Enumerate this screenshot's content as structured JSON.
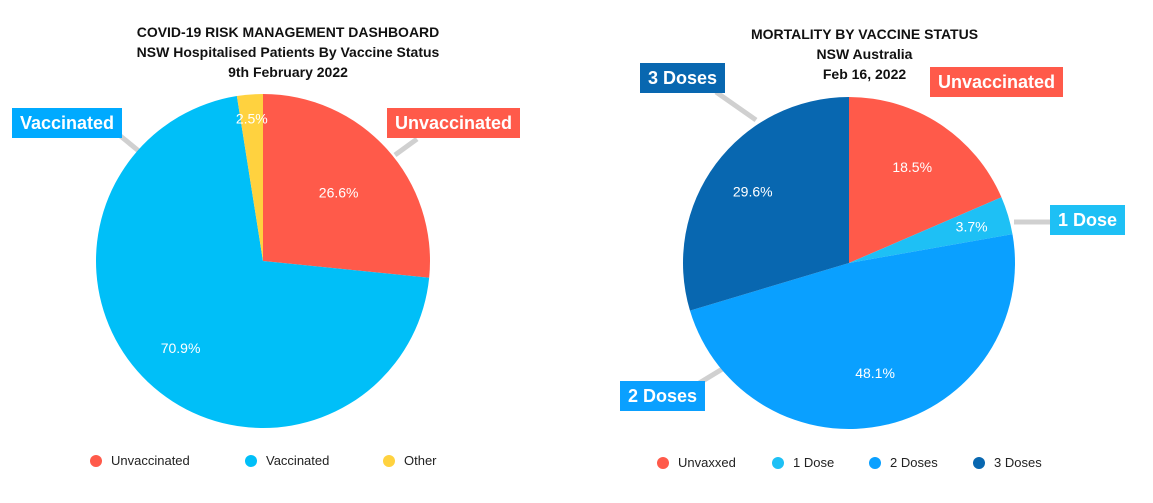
{
  "charts": [
    {
      "title_lines": [
        "COVID-19 RISK MANAGEMENT DASHBOARD",
        "NSW Hospitalised Patients By Vaccine Status",
        "9th February 2022"
      ],
      "legend": [
        {
          "label": "Unvaccinated",
          "color": "#ff5a4a"
        },
        {
          "label": "Vaccinated",
          "color": "#00bff8"
        },
        {
          "label": "Other",
          "color": "#ffd23f"
        }
      ],
      "callouts": [
        {
          "text": "Unvaccinated",
          "color": "#ff5a4a"
        },
        {
          "text": "Vaccinated",
          "color": "#00aaff"
        }
      ]
    },
    {
      "title_lines": [
        "MORTALITY BY VACCINE STATUS",
        "NSW Australia",
        "Feb 16, 2022"
      ],
      "legend": [
        {
          "label": "Unvaxxed",
          "color": "#ff5a4a"
        },
        {
          "label": "1 Dose",
          "color": "#1ec0f5"
        },
        {
          "label": "2 Doses",
          "color": "#0aa0ff"
        },
        {
          "label": "3 Doses",
          "color": "#0867b0"
        }
      ],
      "callouts": [
        {
          "text": "3 Doses",
          "color": "#0867b0"
        },
        {
          "text": "Unvaccinated",
          "color": "#ff5a4a"
        },
        {
          "text": "1 Dose",
          "color": "#1ec0f5"
        },
        {
          "text": "2 Doses",
          "color": "#0aa0ff"
        }
      ]
    }
  ],
  "chart_data": [
    {
      "type": "pie",
      "title": "COVID-19 RISK MANAGEMENT DASHBOARD",
      "subtitle": "NSW Hospitalised Patients By Vaccine Status — 9th February 2022",
      "categories": [
        "Unvaccinated",
        "Vaccinated",
        "Other"
      ],
      "values": [
        26.6,
        70.9,
        2.5
      ],
      "data_labels": [
        "26.6%",
        "70.9%",
        "2.5%"
      ],
      "colors": [
        "#ff5a4a",
        "#00bff8",
        "#ffd23f"
      ],
      "legend_position": "bottom"
    },
    {
      "type": "pie",
      "title": "MORTALITY BY VACCINE STATUS",
      "subtitle": "NSW Australia — Feb 16, 2022",
      "categories": [
        "Unvaxxed",
        "1 Dose",
        "2 Doses",
        "3 Doses"
      ],
      "values": [
        18.5,
        3.7,
        48.1,
        29.6
      ],
      "data_labels": [
        "18.5%",
        "3.7%",
        "48.1%",
        "29.6%"
      ],
      "colors": [
        "#ff5a4a",
        "#1ec0f5",
        "#0aa0ff",
        "#0867b0"
      ],
      "legend_position": "bottom"
    }
  ]
}
